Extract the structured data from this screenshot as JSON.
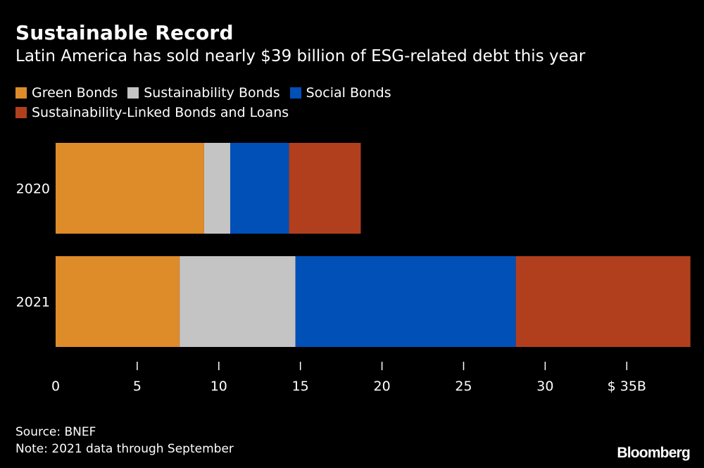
{
  "chart_data": {
    "type": "bar",
    "orientation": "horizontal",
    "stacked": true,
    "title": "Sustainable Record",
    "subtitle": "Latin America has sold nearly $39 billion of ESG-related debt this year",
    "categories": [
      "2020",
      "2021"
    ],
    "series": [
      {
        "name": "Green Bonds",
        "color": "#de8b2a",
        "values": [
          9.1,
          7.6
        ]
      },
      {
        "name": "Sustainability Bonds",
        "color": "#c4c4c4",
        "values": [
          1.6,
          7.1
        ]
      },
      {
        "name": "Social Bonds",
        "color": "#0050b8",
        "values": [
          3.6,
          13.5
        ]
      },
      {
        "name": "Sustainability-Linked Bonds and Loans",
        "color": "#b13f1e",
        "values": [
          4.4,
          10.7
        ]
      }
    ],
    "x_ticks": [
      "0",
      "5",
      "10",
      "15",
      "20",
      "25",
      "30",
      "$ 35B"
    ],
    "x_tick_values": [
      0,
      5,
      10,
      15,
      20,
      25,
      30,
      35
    ],
    "xlim": [
      0,
      39
    ],
    "xlabel": "",
    "ylabel": "",
    "legend_position": "top",
    "grid": false,
    "background": "#000000"
  },
  "footer": {
    "source": "Source: BNEF",
    "note": "Note: 2021 data through September",
    "brand": "Bloomberg"
  }
}
